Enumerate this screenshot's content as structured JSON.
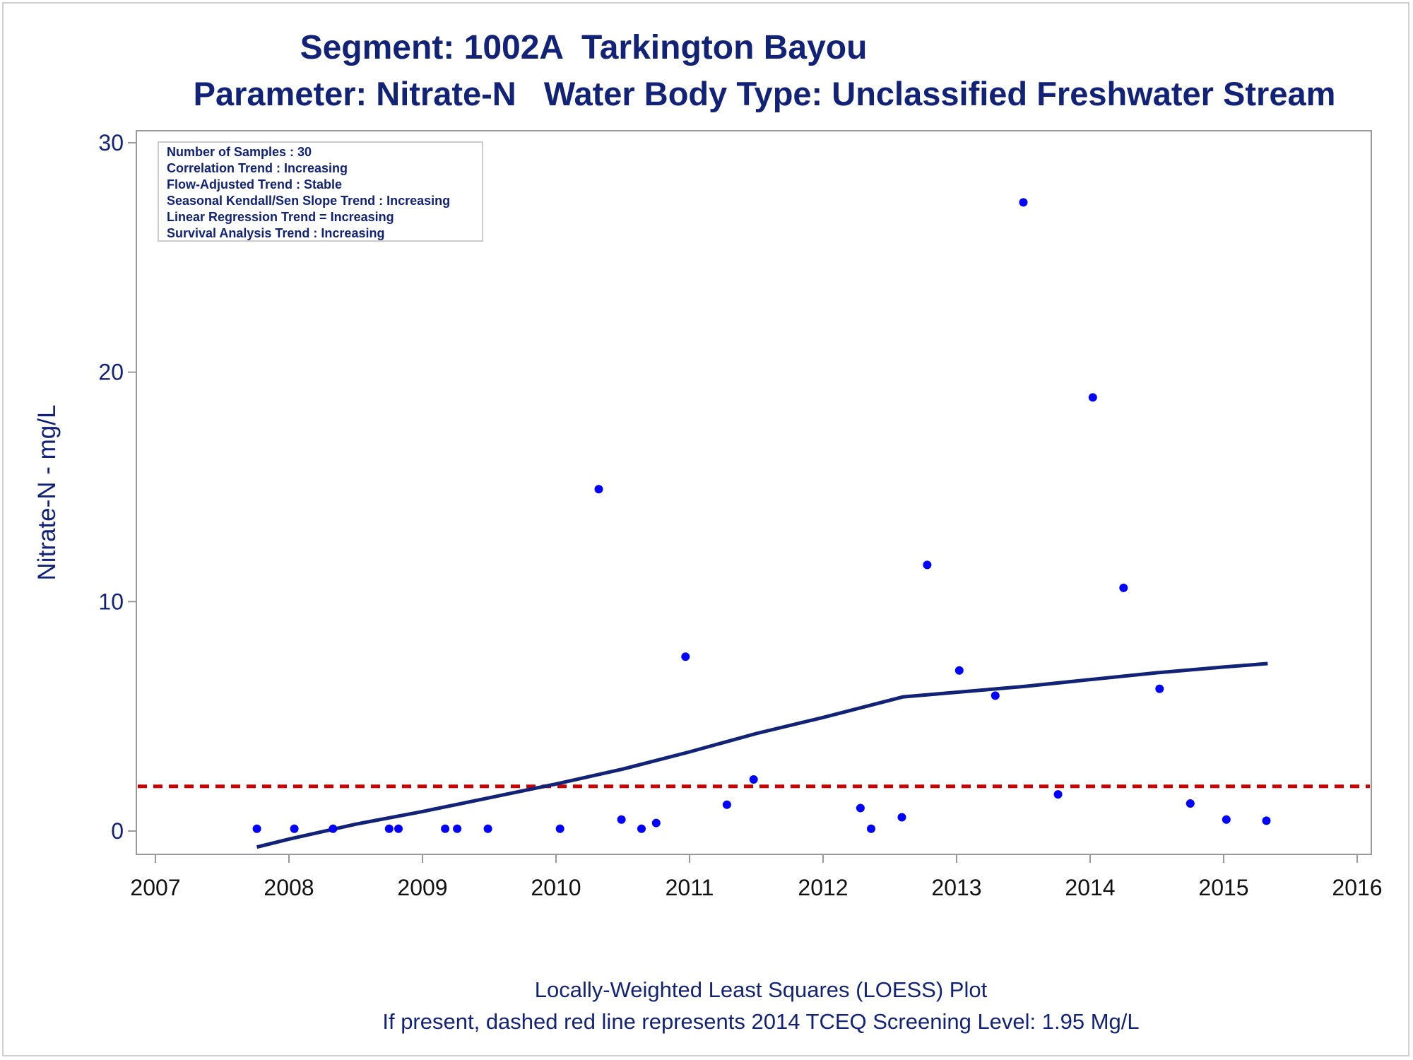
{
  "header": {
    "title": "Segment: 1002A  Tarkington Bayou",
    "subtitle": "Parameter: Nitrate-N   Water Body Type: Unclassified Freshwater Stream"
  },
  "footer": {
    "line1": "Locally-Weighted Least Squares (LOESS) Plot",
    "line2": "If present, dashed red line represents 2014 TCEQ Screening Level: 1.95 Mg/L"
  },
  "colors": {
    "text": "#112277",
    "points": "#0000ff",
    "loess": "#112277",
    "screening": "#cc0000",
    "frame": "#999999"
  },
  "chart_data": {
    "type": "scatter",
    "title": "Segment: 1002A  Tarkington Bayou",
    "subtitle": "Parameter: Nitrate-N   Water Body Type: Unclassified Freshwater Stream",
    "xlabel": "",
    "ylabel": "Nitrate-N - mg/L",
    "xlim": [
      2007,
      2016
    ],
    "ylim": [
      -1,
      30.5
    ],
    "xticks": [
      2007,
      2008,
      2009,
      2010,
      2011,
      2012,
      2013,
      2014,
      2015,
      2016
    ],
    "yticks": [
      0,
      10,
      20,
      30
    ],
    "grid": false,
    "info_box": [
      "Number of Samples : 30",
      "Correlation Trend : Increasing",
      "Flow-Adjusted Trend : Stable",
      "Seasonal Kendall/Sen Slope Trend : Increasing",
      "Linear Regression Trend = Increasing",
      "Survival Analysis Trend : Increasing"
    ],
    "points": [
      {
        "x": 2007.76,
        "y": 0.1
      },
      {
        "x": 2008.04,
        "y": 0.1
      },
      {
        "x": 2008.33,
        "y": 0.1
      },
      {
        "x": 2008.75,
        "y": 0.1
      },
      {
        "x": 2008.82,
        "y": 0.1
      },
      {
        "x": 2009.17,
        "y": 0.1
      },
      {
        "x": 2009.26,
        "y": 0.1
      },
      {
        "x": 2009.49,
        "y": 0.1
      },
      {
        "x": 2010.03,
        "y": 0.1
      },
      {
        "x": 2010.32,
        "y": 14.9
      },
      {
        "x": 2010.49,
        "y": 0.5
      },
      {
        "x": 2010.64,
        "y": 0.1
      },
      {
        "x": 2010.75,
        "y": 0.35
      },
      {
        "x": 2010.97,
        "y": 7.6
      },
      {
        "x": 2011.28,
        "y": 1.15
      },
      {
        "x": 2011.48,
        "y": 2.25
      },
      {
        "x": 2012.28,
        "y": 1.0
      },
      {
        "x": 2012.36,
        "y": 0.1
      },
      {
        "x": 2012.59,
        "y": 0.6
      },
      {
        "x": 2012.78,
        "y": 11.6
      },
      {
        "x": 2013.02,
        "y": 7.0
      },
      {
        "x": 2013.29,
        "y": 5.9
      },
      {
        "x": 2013.5,
        "y": 27.4
      },
      {
        "x": 2013.76,
        "y": 1.6
      },
      {
        "x": 2014.02,
        "y": 18.9
      },
      {
        "x": 2014.25,
        "y": 10.6
      },
      {
        "x": 2014.52,
        "y": 6.2
      },
      {
        "x": 2014.75,
        "y": 1.2
      },
      {
        "x": 2015.02,
        "y": 0.5
      },
      {
        "x": 2015.32,
        "y": 0.45
      }
    ],
    "loess": {
      "x": [
        2007.76,
        2008.0,
        2008.5,
        2009.0,
        2009.5,
        2010.0,
        2010.5,
        2011.0,
        2011.5,
        2012.0,
        2012.3,
        2012.6,
        2013.0,
        2013.5,
        2014.0,
        2014.5,
        2015.0,
        2015.33
      ],
      "y": [
        -0.7,
        -0.35,
        0.3,
        0.85,
        1.45,
        2.05,
        2.7,
        3.45,
        4.25,
        4.95,
        5.4,
        5.85,
        6.05,
        6.3,
        6.6,
        6.9,
        7.15,
        7.3
      ]
    },
    "screening_level": {
      "y": 1.95,
      "style": "dashed",
      "color": "#cc0000"
    }
  }
}
